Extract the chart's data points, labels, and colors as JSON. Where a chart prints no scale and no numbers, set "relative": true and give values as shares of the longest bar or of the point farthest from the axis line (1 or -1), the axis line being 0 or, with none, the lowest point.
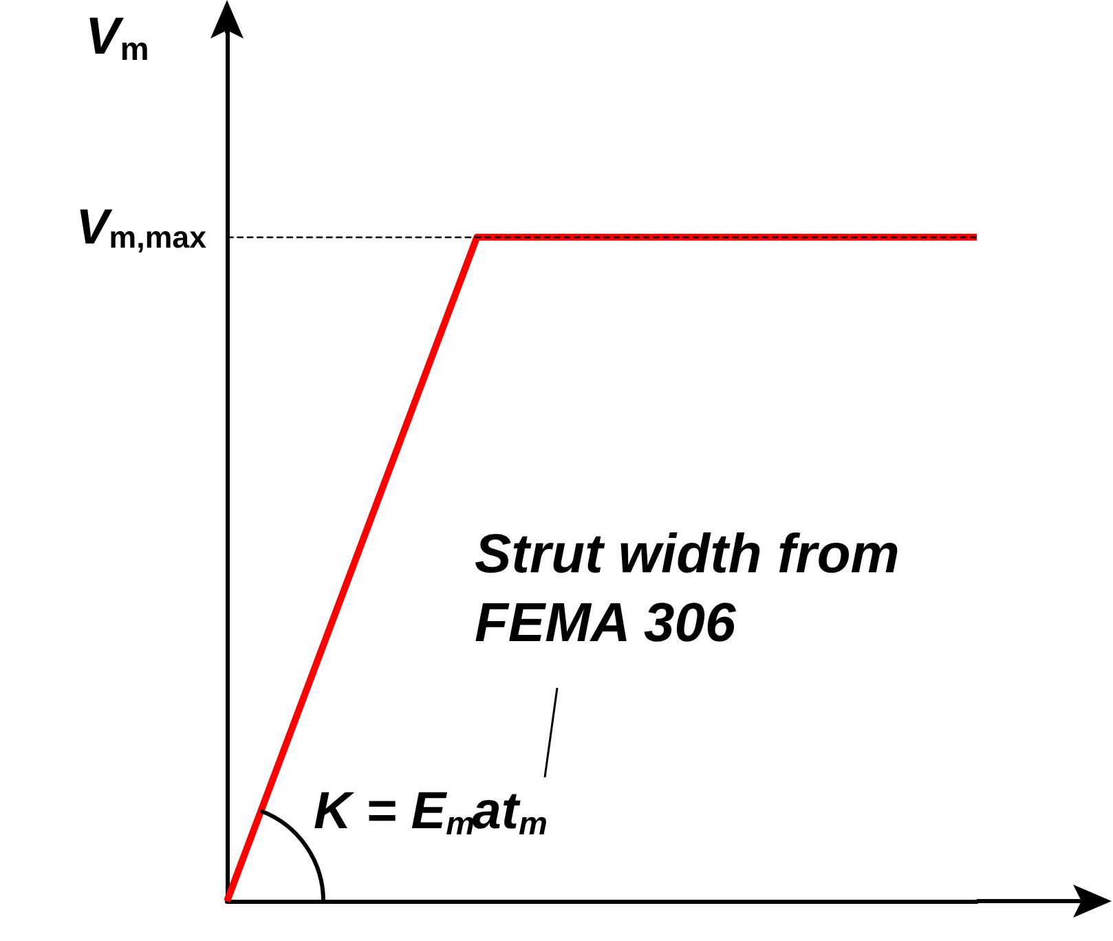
{
  "chart_data": {
    "type": "line",
    "relative": true,
    "categories": [
      null,
      null,
      null,
      null
    ],
    "values": [
      0,
      1,
      1,
      1
    ],
    "color": "#ff0000",
    "marker": "none",
    "ylabel": "V$_{m}$",
    "ref_lines": [
      {
        "axis": "y",
        "value": 1,
        "label": "V$_{m,max}$",
        "line_style": "dashed",
        "color": "#000000"
      }
    ],
    "annotations": [
      "Strut width from FEMA 306",
      "K = E$_{m}$at$_{m}$"
    ],
    "grid": false
  }
}
